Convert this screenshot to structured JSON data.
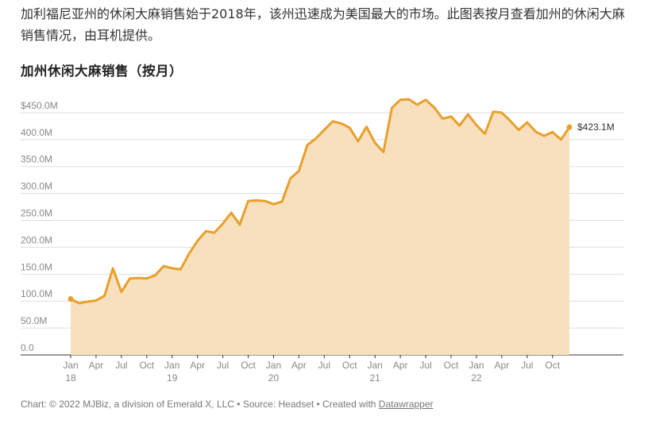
{
  "intro_text": "加利福尼亚州的休闲大麻销售始于2018年，该州迅速成为美国最大的市场。此图表按月查看加州的休闲大麻销售情况，由耳机提供。",
  "footer": {
    "prefix": "Chart: © 2022 MJBiz, a division of Emerald X, LLC • Source: Headset • Created with ",
    "link": "Datawrapper"
  },
  "colors": {
    "line": "#e8a02c",
    "area": "#f8dfbd",
    "grid": "#dddddd"
  },
  "chart_data": {
    "type": "area",
    "title": "加州休闲大麻销售（按月）",
    "unit": "$M",
    "ylim": [
      0,
      475
    ],
    "yticks": [
      {
        "v": 0,
        "label": "0.0"
      },
      {
        "v": 50,
        "label": "50.0M"
      },
      {
        "v": 100,
        "label": "100.0M"
      },
      {
        "v": 150,
        "label": "150.0M"
      },
      {
        "v": 200,
        "label": "200.0M"
      },
      {
        "v": 250,
        "label": "250.0M"
      },
      {
        "v": 300,
        "label": "300.0M"
      },
      {
        "v": 350,
        "label": "350.0M"
      },
      {
        "v": 400,
        "label": "400.0M"
      },
      {
        "v": 450,
        "label": "$450.0M"
      }
    ],
    "xticks": [
      {
        "date": "2018-01",
        "label": "Jan",
        "year": "18"
      },
      {
        "date": "2018-04",
        "label": "Apr",
        "year": ""
      },
      {
        "date": "2018-07",
        "label": "Jul",
        "year": ""
      },
      {
        "date": "2018-10",
        "label": "Oct",
        "year": ""
      },
      {
        "date": "2019-01",
        "label": "Jan",
        "year": "19"
      },
      {
        "date": "2019-04",
        "label": "Apr",
        "year": ""
      },
      {
        "date": "2019-07",
        "label": "Jul",
        "year": ""
      },
      {
        "date": "2019-10",
        "label": "Oct",
        "year": ""
      },
      {
        "date": "2020-01",
        "label": "Jan",
        "year": "20"
      },
      {
        "date": "2020-04",
        "label": "Apr",
        "year": ""
      },
      {
        "date": "2020-07",
        "label": "Jul",
        "year": ""
      },
      {
        "date": "2020-10",
        "label": "Oct",
        "year": ""
      },
      {
        "date": "2021-01",
        "label": "Jan",
        "year": "21"
      },
      {
        "date": "2021-04",
        "label": "Apr",
        "year": ""
      },
      {
        "date": "2021-07",
        "label": "Jul",
        "year": ""
      },
      {
        "date": "2021-10",
        "label": "Oct",
        "year": ""
      },
      {
        "date": "2022-01",
        "label": "Jan",
        "year": "22"
      },
      {
        "date": "2022-04",
        "label": "Apr",
        "year": ""
      },
      {
        "date": "2022-07",
        "label": "Jul",
        "year": ""
      },
      {
        "date": "2022-10",
        "label": "Oct",
        "year": ""
      }
    ],
    "end_label": "$423.1M",
    "series": [
      {
        "x": [
          "2018-01",
          "2018-02",
          "2018-03",
          "2018-04",
          "2018-05",
          "2018-06",
          "2018-07",
          "2018-08",
          "2018-09",
          "2018-10",
          "2018-11",
          "2018-12",
          "2019-01",
          "2019-02",
          "2019-03",
          "2019-04",
          "2019-05",
          "2019-06",
          "2019-07",
          "2019-08",
          "2019-09",
          "2019-10",
          "2019-11",
          "2019-12",
          "2020-01",
          "2020-02",
          "2020-03",
          "2020-04",
          "2020-05",
          "2020-06",
          "2020-07",
          "2020-08",
          "2020-09",
          "2020-10",
          "2020-11",
          "2020-12",
          "2021-01",
          "2021-02",
          "2021-03",
          "2021-04",
          "2021-05",
          "2021-06",
          "2021-07",
          "2021-08",
          "2021-09",
          "2021-10",
          "2021-11",
          "2021-12",
          "2022-01",
          "2022-02",
          "2022-03",
          "2022-04",
          "2022-05",
          "2022-06",
          "2022-07",
          "2022-08",
          "2022-09",
          "2022-10",
          "2022-11",
          "2022-12"
        ],
        "y": [
          104,
          96,
          99,
          101,
          110,
          161,
          117,
          142,
          143,
          142,
          148,
          165,
          161,
          159,
          188,
          212,
          230,
          227,
          244,
          264,
          242,
          286,
          287,
          286,
          280,
          285,
          328,
          342,
          390,
          402,
          418,
          434,
          430,
          422,
          397,
          424,
          394,
          377,
          459,
          474,
          475,
          465,
          474,
          460,
          439,
          443,
          426,
          447,
          427,
          411,
          452,
          450,
          435,
          418,
          432,
          415,
          407,
          414,
          400,
          423.1
        ]
      }
    ]
  }
}
